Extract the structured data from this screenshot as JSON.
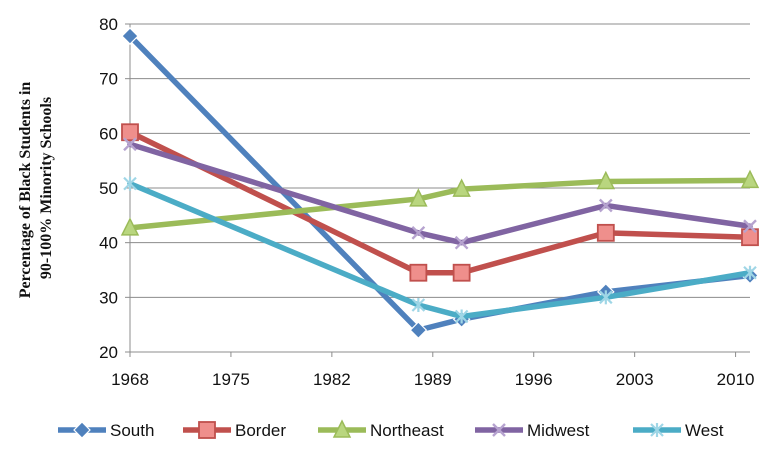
{
  "chart_data": {
    "type": "line",
    "ylabel": "Percentage of Black Students in 90-100% Minority Schools",
    "xlabel": "",
    "xlim": [
      1968,
      2011
    ],
    "ylim": [
      20,
      80
    ],
    "x_ticks": [
      "1968",
      "1975",
      "1982",
      "1989",
      "1996",
      "2003",
      "2010"
    ],
    "y_ticks": [
      "20",
      "30",
      "40",
      "50",
      "60",
      "70",
      "80"
    ],
    "grid": "horizontal",
    "legend_position": "bottom",
    "series": [
      {
        "name": "South",
        "color": "#4F81BD",
        "marker": "diamond",
        "x": [
          1968,
          1988,
          1991,
          2001,
          2011
        ],
        "y": [
          77.8,
          24.0,
          26.0,
          31.0,
          34.0
        ]
      },
      {
        "name": "Border",
        "color": "#C0504D",
        "marker": "square",
        "x": [
          1968,
          1988,
          1991,
          2001,
          2011
        ],
        "y": [
          60.2,
          34.5,
          34.5,
          41.8,
          41.0
        ]
      },
      {
        "name": "Northeast",
        "color": "#9BBB59",
        "marker": "triangle",
        "x": [
          1968,
          1988,
          1991,
          2001,
          2011
        ],
        "y": [
          42.7,
          48.0,
          49.8,
          51.2,
          51.4
        ]
      },
      {
        "name": "Midwest",
        "color": "#8064A2",
        "marker": "x",
        "x": [
          1968,
          1988,
          1991,
          2001,
          2011
        ],
        "y": [
          58.0,
          41.8,
          40.0,
          46.8,
          43.0
        ]
      },
      {
        "name": "West",
        "color": "#4BACC6",
        "marker": "asterisk",
        "x": [
          1968,
          1988,
          1991,
          2001,
          2011
        ],
        "y": [
          50.8,
          28.6,
          26.5,
          30.0,
          34.5
        ]
      }
    ]
  }
}
